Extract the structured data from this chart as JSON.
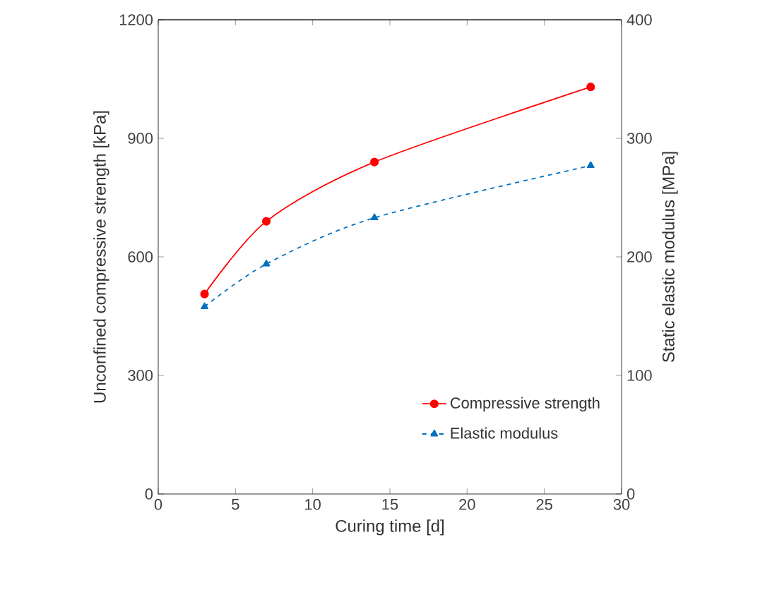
{
  "chart_data": {
    "type": "line",
    "xlabel": "Curing time [d]",
    "ylabel": "Unconfined compressive strength [kPa]",
    "y2label": "Static elastic modulus [MPa]",
    "x": [
      3,
      7,
      14,
      28
    ],
    "xlim": [
      0,
      30
    ],
    "xticks": [
      0,
      5,
      10,
      15,
      20,
      25,
      30
    ],
    "ylim": [
      0,
      1200
    ],
    "yticks": [
      0,
      300,
      600,
      900,
      1200
    ],
    "y2lim": [
      0,
      400
    ],
    "y2ticks": [
      0,
      100,
      200,
      300,
      400
    ],
    "legend": "bottom right",
    "grid": false,
    "series": [
      {
        "name": "Compressive strength",
        "color": "#ff0000",
        "values": [
          506,
          690,
          840,
          1030
        ],
        "marker": "circle",
        "line_style": "solid"
      },
      {
        "name": "Elastic modulus",
        "color": "#0070c0",
        "values": [
          158,
          194,
          233,
          277
        ],
        "axis": "y2",
        "marker": "triangle",
        "line_style": "dashed"
      }
    ]
  }
}
